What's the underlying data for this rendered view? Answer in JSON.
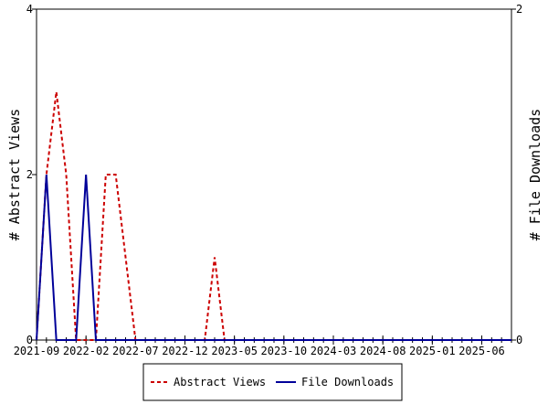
{
  "chart_data": {
    "type": "line",
    "x_tick_labels": [
      "2021-09",
      "2022-02",
      "2022-07",
      "2022-12",
      "2023-05",
      "2023-10",
      "2024-03",
      "2024-08",
      "2025-01",
      "2025-06"
    ],
    "y_left": {
      "label": "# Abstract Views",
      "ylim": [
        0,
        4
      ],
      "tick_labels": [
        "0",
        "2",
        "4"
      ],
      "tick_values": [
        0,
        2,
        4
      ]
    },
    "y_right": {
      "label": "# File Downloads",
      "ylim": [
        0,
        2
      ],
      "tick_labels": [
        "0",
        "2"
      ],
      "tick_values": [
        0,
        2
      ]
    },
    "series": [
      {
        "name": "Abstract Views",
        "axis": "left",
        "color": "#cc0000",
        "style": "dashed",
        "points": [
          [
            "2021-09",
            0
          ],
          [
            "2021-10",
            2
          ],
          [
            "2021-11",
            3
          ],
          [
            "2021-12",
            2
          ],
          [
            "2022-01",
            0
          ],
          [
            "2022-02",
            0
          ],
          [
            "2022-03",
            0
          ],
          [
            "2022-04",
            2
          ],
          [
            "2022-05",
            2
          ],
          [
            "2022-06",
            1
          ],
          [
            "2022-07",
            0
          ],
          [
            "2022-08",
            0
          ],
          [
            "2022-09",
            0
          ],
          [
            "2022-10",
            0
          ],
          [
            "2022-11",
            0
          ],
          [
            "2022-12",
            0
          ],
          [
            "2023-01",
            0
          ],
          [
            "2023-02",
            0
          ],
          [
            "2023-03",
            1
          ],
          [
            "2023-04",
            0
          ],
          [
            "2023-05",
            0
          ],
          [
            "2023-06",
            0
          ],
          [
            "2023-07",
            0
          ],
          [
            "2023-08",
            0
          ],
          [
            "2023-09",
            0
          ],
          [
            "2023-10",
            0
          ],
          [
            "2023-11",
            0
          ],
          [
            "2023-12",
            0
          ],
          [
            "2024-01",
            0
          ],
          [
            "2024-02",
            0
          ],
          [
            "2024-03",
            0
          ],
          [
            "2024-04",
            0
          ],
          [
            "2024-05",
            0
          ],
          [
            "2024-06",
            0
          ],
          [
            "2024-07",
            0
          ],
          [
            "2024-08",
            0
          ],
          [
            "2024-09",
            0
          ],
          [
            "2024-10",
            0
          ],
          [
            "2024-11",
            0
          ],
          [
            "2024-12",
            0
          ],
          [
            "2025-01",
            0
          ],
          [
            "2025-02",
            0
          ],
          [
            "2025-03",
            0
          ],
          [
            "2025-04",
            0
          ],
          [
            "2025-05",
            0
          ],
          [
            "2025-06",
            0
          ],
          [
            "2025-07",
            0
          ],
          [
            "2025-08",
            0
          ],
          [
            "2025-09",
            0
          ]
        ]
      },
      {
        "name": "File Downloads",
        "axis": "right",
        "color": "#000099",
        "style": "solid",
        "points": [
          [
            "2021-09",
            0
          ],
          [
            "2021-10",
            1
          ],
          [
            "2021-11",
            0
          ],
          [
            "2021-12",
            0
          ],
          [
            "2022-01",
            0
          ],
          [
            "2022-02",
            1
          ],
          [
            "2022-03",
            0
          ],
          [
            "2022-04",
            0
          ],
          [
            "2022-05",
            0
          ],
          [
            "2022-06",
            0
          ],
          [
            "2022-07",
            0
          ],
          [
            "2022-08",
            0
          ],
          [
            "2022-09",
            0
          ],
          [
            "2022-10",
            0
          ],
          [
            "2022-11",
            0
          ],
          [
            "2022-12",
            0
          ],
          [
            "2023-01",
            0
          ],
          [
            "2023-02",
            0
          ],
          [
            "2023-03",
            0
          ],
          [
            "2023-04",
            0
          ],
          [
            "2023-05",
            0
          ],
          [
            "2023-06",
            0
          ],
          [
            "2023-07",
            0
          ],
          [
            "2023-08",
            0
          ],
          [
            "2023-09",
            0
          ],
          [
            "2023-10",
            0
          ],
          [
            "2023-11",
            0
          ],
          [
            "2023-12",
            0
          ],
          [
            "2024-01",
            0
          ],
          [
            "2024-02",
            0
          ],
          [
            "2024-03",
            0
          ],
          [
            "2024-04",
            0
          ],
          [
            "2024-05",
            0
          ],
          [
            "2024-06",
            0
          ],
          [
            "2024-07",
            0
          ],
          [
            "2024-08",
            0
          ],
          [
            "2024-09",
            0
          ],
          [
            "2024-10",
            0
          ],
          [
            "2024-11",
            0
          ],
          [
            "2024-12",
            0
          ],
          [
            "2025-01",
            0
          ],
          [
            "2025-02",
            0
          ],
          [
            "2025-03",
            0
          ],
          [
            "2025-04",
            0
          ],
          [
            "2025-05",
            0
          ],
          [
            "2025-06",
            0
          ],
          [
            "2025-07",
            0
          ],
          [
            "2025-08",
            0
          ],
          [
            "2025-09",
            0
          ]
        ]
      }
    ],
    "legend": {
      "placement": "bottom",
      "entries": [
        "Abstract Views",
        "File Downloads"
      ]
    },
    "grid": false
  }
}
